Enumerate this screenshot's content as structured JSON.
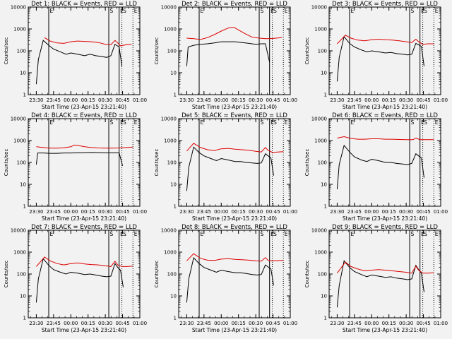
{
  "chart_data": [
    {
      "type": "line",
      "title": "Det 1: BLACK = Events, RED = LLD",
      "xlabel": "Start Time (23-Apr-15 23:21:40)",
      "ylabel": "Counts/sec",
      "yscale": "log",
      "ylim": [
        1,
        10000
      ],
      "x_ticks": [
        "23:30",
        "23:45",
        "00:00",
        "00:15",
        "00:30",
        "00:45",
        "01:00"
      ],
      "y_ticks": [
        "1",
        "10",
        "100",
        "1000",
        "10000"
      ],
      "markers": [
        "E",
        "S",
        "E",
        "S",
        "E"
      ],
      "series": [
        {
          "color": "#000000",
          "x": [
            23.5,
            23.53,
            23.6,
            23.68,
            23.75,
            23.85,
            23.93,
            24.0,
            24.1,
            24.2,
            24.28,
            24.36,
            24.45,
            24.52,
            24.58,
            24.64,
            24.66,
            24.7,
            24.74
          ],
          "y": [
            3,
            40,
            300,
            180,
            120,
            90,
            70,
            80,
            70,
            60,
            70,
            60,
            55,
            50,
            60,
            200,
            180,
            150,
            20
          ]
        },
        {
          "color": "#dd0000",
          "x": [
            23.62,
            23.7,
            23.8,
            23.9,
            24.0,
            24.1,
            24.2,
            24.3,
            24.4,
            24.5,
            24.58,
            24.64,
            24.68,
            24.72,
            24.8,
            24.88
          ],
          "y": [
            400,
            280,
            230,
            220,
            260,
            280,
            270,
            260,
            240,
            200,
            190,
            300,
            230,
            170,
            190,
            200
          ]
        }
      ]
    },
    {
      "type": "line",
      "title": "Det 2: BLACK = Events, RED = LLD",
      "xlabel": "Start Time (23-Apr-15 23:21:40)",
      "ylabel": "Counts/sec",
      "yscale": "log",
      "ylim": [
        1,
        10000
      ],
      "x_ticks": [
        "23:30",
        "23:45",
        "00:00",
        "00:15",
        "00:30",
        "00:45",
        "01:00"
      ],
      "y_ticks": [
        "1",
        "10",
        "100",
        "1000",
        "10000"
      ],
      "markers": [
        "E",
        "S",
        "E",
        "S",
        "E"
      ],
      "series": [
        {
          "color": "#000000",
          "x": [
            23.5,
            23.52,
            23.6,
            23.7,
            23.8,
            23.9,
            24.0,
            24.1,
            24.2,
            24.3,
            24.4,
            24.5,
            24.58,
            24.64,
            24.7
          ],
          "y": [
            20,
            150,
            180,
            200,
            210,
            230,
            260,
            260,
            260,
            240,
            220,
            200,
            210,
            210,
            30
          ]
        },
        {
          "color": "#dd0000",
          "x": [
            23.5,
            23.6,
            23.7,
            23.8,
            23.9,
            24.0,
            24.1,
            24.18,
            24.25,
            24.35,
            24.45,
            24.55,
            24.65,
            24.75,
            24.88
          ],
          "y": [
            380,
            360,
            330,
            400,
            550,
            800,
            1100,
            1200,
            900,
            600,
            420,
            380,
            360,
            370,
            400
          ]
        }
      ]
    },
    {
      "type": "line",
      "title": "Det 3: BLACK = Events, RED = LLD",
      "xlabel": "Start Time (23-Apr-15 23:21:40)",
      "ylabel": "Counts/sec",
      "yscale": "log",
      "ylim": [
        1,
        10000
      ],
      "x_ticks": [
        "23:30",
        "23:45",
        "00:00",
        "00:15",
        "00:30",
        "00:45",
        "01:00"
      ],
      "y_ticks": [
        "1",
        "10",
        "100",
        "1000",
        "10000"
      ],
      "markers": [
        "E",
        "S",
        "E",
        "S",
        "E"
      ],
      "series": [
        {
          "color": "#000000",
          "x": [
            23.5,
            23.53,
            23.6,
            23.68,
            23.75,
            23.85,
            23.93,
            24.0,
            24.1,
            24.2,
            24.28,
            24.36,
            24.45,
            24.52,
            24.58,
            24.64,
            24.68,
            24.72,
            24.76
          ],
          "y": [
            4,
            50,
            450,
            220,
            150,
            110,
            90,
            100,
            90,
            80,
            85,
            75,
            70,
            65,
            70,
            220,
            190,
            160,
            20
          ]
        },
        {
          "color": "#dd0000",
          "x": [
            23.5,
            23.62,
            23.7,
            23.8,
            23.9,
            24.0,
            24.1,
            24.2,
            24.3,
            24.4,
            24.5,
            24.58,
            24.64,
            24.68,
            24.74,
            24.82,
            24.9
          ],
          "y": [
            210,
            520,
            380,
            310,
            290,
            320,
            340,
            320,
            310,
            290,
            260,
            240,
            340,
            260,
            200,
            210,
            210
          ]
        }
      ]
    },
    {
      "type": "line",
      "title": "Det 4: BLACK = Events, RED = LLD",
      "xlabel": "Start Time (23-Apr-15 23:21:40)",
      "ylabel": "Counts/sec",
      "yscale": "log",
      "ylim": [
        1,
        10000
      ],
      "x_ticks": [
        "23:30",
        "23:45",
        "00:00",
        "00:15",
        "00:30",
        "00:45",
        "01:00"
      ],
      "y_ticks": [
        "1",
        "10",
        "100",
        "1000",
        "10000"
      ],
      "markers": [
        "E",
        "S",
        "E",
        "S",
        "E"
      ],
      "series": [
        {
          "color": "#000000",
          "x": [
            23.5,
            23.52,
            23.6,
            23.7,
            23.8,
            23.9,
            24.0,
            24.1,
            24.2,
            24.3,
            24.4,
            24.5,
            24.6,
            24.7,
            24.75
          ],
          "y": [
            80,
            270,
            270,
            260,
            260,
            270,
            270,
            275,
            280,
            285,
            280,
            275,
            275,
            275,
            70
          ]
        },
        {
          "color": "#dd0000",
          "x": [
            23.5,
            23.6,
            23.7,
            23.8,
            23.9,
            24.0,
            24.05,
            24.1,
            24.2,
            24.3,
            24.4,
            24.5,
            24.6,
            24.7,
            24.8,
            24.9
          ],
          "y": [
            520,
            480,
            450,
            450,
            470,
            520,
            620,
            600,
            520,
            480,
            460,
            450,
            450,
            460,
            480,
            500
          ]
        }
      ]
    },
    {
      "type": "line",
      "title": "Det 5: BLACK = Events, RED = LLD",
      "xlabel": "Start Time (23-Apr-15 23:21:40)",
      "ylabel": "Counts/sec",
      "yscale": "log",
      "ylim": [
        1,
        10000
      ],
      "x_ticks": [
        "23:30",
        "23:45",
        "00:00",
        "00:15",
        "00:30",
        "00:45",
        "01:00"
      ],
      "y_ticks": [
        "1",
        "10",
        "100",
        "1000",
        "10000"
      ],
      "markers": [
        "E",
        "S",
        "E",
        "S",
        "E"
      ],
      "series": [
        {
          "color": "#000000",
          "x": [
            23.5,
            23.53,
            23.6,
            23.68,
            23.75,
            23.85,
            23.93,
            24.0,
            24.1,
            24.2,
            24.28,
            24.36,
            24.45,
            24.52,
            24.58,
            24.64,
            24.68,
            24.72,
            24.76
          ],
          "y": [
            5,
            60,
            500,
            280,
            200,
            150,
            120,
            150,
            130,
            110,
            110,
            100,
            95,
            90,
            95,
            250,
            200,
            160,
            25
          ]
        },
        {
          "color": "#dd0000",
          "x": [
            23.5,
            23.6,
            23.7,
            23.8,
            23.9,
            24.0,
            24.1,
            24.2,
            24.3,
            24.4,
            24.5,
            24.58,
            24.64,
            24.68,
            24.74,
            24.82,
            24.9
          ],
          "y": [
            330,
            750,
            480,
            380,
            350,
            420,
            440,
            400,
            380,
            360,
            320,
            300,
            480,
            360,
            290,
            300,
            310
          ]
        }
      ]
    },
    {
      "type": "line",
      "title": "Det 6: BLACK = Events, RED = LLD",
      "xlabel": "Start Time (23-Apr-15 23:21:40)",
      "ylabel": "Counts/sec",
      "yscale": "log",
      "ylim": [
        1,
        10000
      ],
      "x_ticks": [
        "23:30",
        "23:45",
        "00:00",
        "00:15",
        "00:30",
        "00:45",
        "01:00"
      ],
      "y_ticks": [
        "1",
        "10",
        "100",
        "1000",
        "10000"
      ],
      "markers": [
        "E",
        "S",
        "E",
        "S",
        "E"
      ],
      "series": [
        {
          "color": "#000000",
          "x": [
            23.5,
            23.53,
            23.6,
            23.68,
            23.75,
            23.85,
            23.93,
            24.0,
            24.1,
            24.2,
            24.28,
            24.36,
            24.45,
            24.52,
            24.58,
            24.64,
            24.68,
            24.72,
            24.76
          ],
          "y": [
            6,
            80,
            600,
            300,
            180,
            130,
            110,
            140,
            120,
            100,
            100,
            90,
            85,
            80,
            90,
            250,
            200,
            160,
            20
          ]
        },
        {
          "color": "#dd0000",
          "x": [
            23.5,
            23.6,
            23.7,
            23.8,
            23.9,
            24.0,
            24.1,
            24.2,
            24.3,
            24.4,
            24.5,
            24.6,
            24.64,
            24.7,
            24.8,
            24.9
          ],
          "y": [
            1300,
            1500,
            1250,
            1150,
            1150,
            1200,
            1200,
            1150,
            1150,
            1120,
            1100,
            1100,
            1300,
            1100,
            1100,
            1100
          ]
        }
      ]
    },
    {
      "type": "line",
      "title": "Det 7: BLACK = Events, RED = LLD",
      "xlabel": "Start Time (23-Apr-15 23:21:40)",
      "ylabel": "Counts/sec",
      "yscale": "log",
      "ylim": [
        1,
        10000
      ],
      "x_ticks": [
        "23:30",
        "23:45",
        "00:00",
        "00:15",
        "00:30",
        "00:45",
        "01:00"
      ],
      "y_ticks": [
        "1",
        "10",
        "100",
        "1000",
        "10000"
      ],
      "markers": [
        "E",
        "S",
        "E",
        "S",
        "E"
      ],
      "series": [
        {
          "color": "#000000",
          "x": [
            23.5,
            23.53,
            23.6,
            23.68,
            23.75,
            23.85,
            23.93,
            24.0,
            24.1,
            24.2,
            24.28,
            24.36,
            24.45,
            24.52,
            24.58,
            24.64,
            24.68,
            24.72,
            24.76
          ],
          "y": [
            5,
            60,
            500,
            250,
            160,
            120,
            100,
            120,
            110,
            95,
            100,
            90,
            80,
            75,
            80,
            300,
            200,
            150,
            25
          ]
        },
        {
          "color": "#dd0000",
          "x": [
            23.5,
            23.62,
            23.7,
            23.8,
            23.9,
            24.0,
            24.1,
            24.2,
            24.3,
            24.4,
            24.5,
            24.58,
            24.64,
            24.68,
            24.74,
            24.82,
            24.9
          ],
          "y": [
            220,
            600,
            400,
            300,
            260,
            300,
            320,
            290,
            270,
            260,
            240,
            220,
            380,
            260,
            220,
            220,
            230
          ]
        }
      ]
    },
    {
      "type": "line",
      "title": "Det 8: BLACK = Events, RED = LLD",
      "xlabel": "Start Time (23-Apr-15 23:21:40)",
      "ylabel": "Counts/sec",
      "yscale": "log",
      "ylim": [
        1,
        10000
      ],
      "x_ticks": [
        "23:30",
        "23:45",
        "00:00",
        "00:15",
        "00:30",
        "00:45",
        "01:00"
      ],
      "y_ticks": [
        "1",
        "10",
        "100",
        "1000",
        "10000"
      ],
      "markers": [
        "E",
        "S",
        "E",
        "S",
        "E"
      ],
      "series": [
        {
          "color": "#000000",
          "x": [
            23.5,
            23.53,
            23.6,
            23.68,
            23.75,
            23.85,
            23.93,
            24.0,
            24.1,
            24.2,
            24.28,
            24.36,
            24.45,
            24.52,
            24.58,
            24.64,
            24.68,
            24.72,
            24.76
          ],
          "y": [
            5,
            60,
            550,
            300,
            200,
            150,
            120,
            150,
            130,
            115,
            115,
            105,
            95,
            90,
            95,
            260,
            210,
            170,
            30
          ]
        },
        {
          "color": "#dd0000",
          "x": [
            23.5,
            23.6,
            23.7,
            23.8,
            23.9,
            24.0,
            24.1,
            24.2,
            24.3,
            24.4,
            24.5,
            24.58,
            24.64,
            24.68,
            24.74,
            24.82,
            24.9
          ],
          "y": [
            400,
            850,
            520,
            430,
            420,
            480,
            500,
            470,
            450,
            430,
            400,
            390,
            560,
            420,
            400,
            410,
            420
          ]
        }
      ]
    },
    {
      "type": "line",
      "title": "Det 9: BLACK = Events, RED = LLD",
      "xlabel": "Start Time (23-Apr-15 23:21:40)",
      "ylabel": "Counts/sec",
      "yscale": "log",
      "ylim": [
        1,
        10000
      ],
      "x_ticks": [
        "23:30",
        "23:45",
        "00:00",
        "00:15",
        "00:30",
        "00:45",
        "01:00"
      ],
      "y_ticks": [
        "1",
        "10",
        "100",
        "1000",
        "10000"
      ],
      "markers": [
        "E",
        "S",
        "E",
        "S",
        "E"
      ],
      "series": [
        {
          "color": "#000000",
          "x": [
            23.5,
            23.53,
            23.6,
            23.68,
            23.75,
            23.85,
            23.93,
            24.0,
            24.1,
            24.2,
            24.28,
            24.36,
            24.45,
            24.52,
            24.58,
            24.64,
            24.68,
            24.72,
            24.76
          ],
          "y": [
            3,
            30,
            400,
            200,
            130,
            95,
            75,
            90,
            80,
            70,
            75,
            65,
            60,
            55,
            60,
            250,
            160,
            110,
            15
          ]
        },
        {
          "color": "#dd0000",
          "x": [
            23.5,
            23.62,
            23.7,
            23.8,
            23.9,
            24.0,
            24.1,
            24.2,
            24.3,
            24.4,
            24.5,
            24.58,
            24.64,
            24.68,
            24.74,
            24.82,
            24.9
          ],
          "y": [
            110,
            350,
            220,
            170,
            140,
            150,
            160,
            150,
            140,
            130,
            120,
            110,
            230,
            150,
            110,
            110,
            115
          ]
        }
      ]
    }
  ]
}
